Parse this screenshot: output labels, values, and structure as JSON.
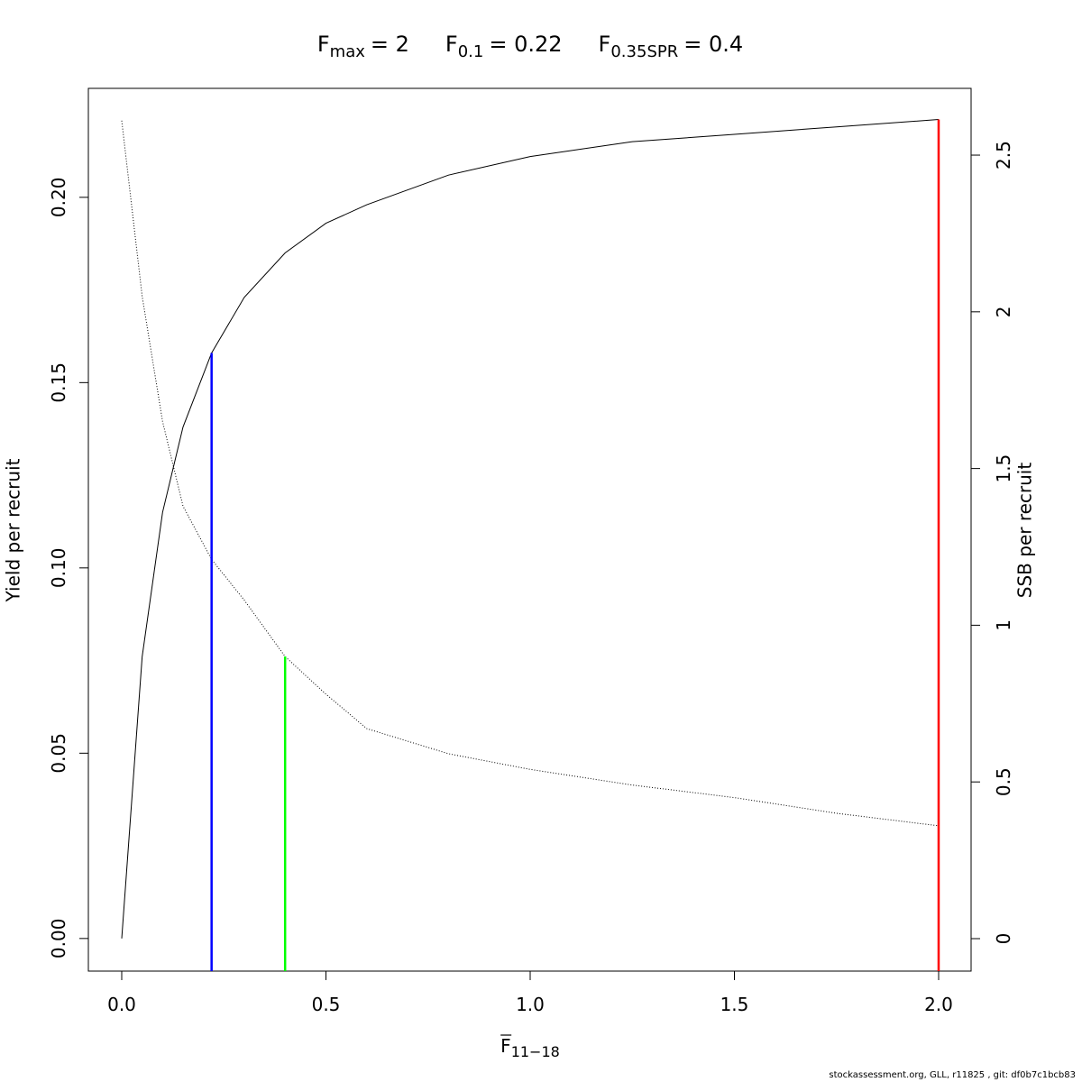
{
  "chart_data": {
    "type": "line",
    "title_parts": [
      {
        "symbol": "F",
        "subscript": "max",
        "value_text": "= 2"
      },
      {
        "symbol": "F",
        "subscript": "0.1",
        "value_text": "= 0.22"
      },
      {
        "symbol": "F",
        "subscript": "0.35SPR",
        "value_text": "= 0.4"
      }
    ],
    "xlabel": {
      "symbol": "F",
      "subscript": "11−18"
    },
    "ylabel": "Yield per recruit",
    "y2label": "SSB per recruit",
    "x": [
      0,
      0.05,
      0.1,
      0.15,
      0.22,
      0.3,
      0.4,
      0.5,
      0.6,
      0.8,
      1.0,
      1.25,
      1.5,
      1.75,
      2.0
    ],
    "series": [
      {
        "color": "#000000",
        "style": "solid",
        "axis": "y",
        "values": [
          0,
          0.076,
          0.115,
          0.138,
          0.158,
          0.173,
          0.185,
          0.193,
          0.198,
          0.206,
          0.211,
          0.215,
          0.217,
          0.219,
          0.221
        ]
      },
      {
        "color": "#000000",
        "style": "dotted",
        "axis": "y2",
        "values": [
          2.61,
          2.05,
          1.65,
          1.38,
          1.21,
          1.08,
          0.9,
          0.78,
          0.67,
          0.59,
          0.54,
          0.49,
          0.45,
          0.4,
          0.36
        ]
      }
    ],
    "reference_lines": [
      {
        "x": 0.22,
        "top": 0.158,
        "axis": "y",
        "color": "#0000ff"
      },
      {
        "x": 0.4,
        "top": 0.9,
        "axis": "y2",
        "color": "#00ff00"
      },
      {
        "x": 2.0,
        "top": 0.221,
        "axis": "y",
        "color": "#ff0000"
      }
    ],
    "xlim": [
      -0.0817,
      2.0795
    ],
    "ylim": [
      -0.0088,
      0.2294
    ],
    "y2lim": [
      -0.1036,
      2.713
    ],
    "xticks": [
      {
        "value": 0,
        "label": "0.0"
      },
      {
        "value": 0.5,
        "label": "0.5"
      },
      {
        "value": 1,
        "label": "1.0"
      },
      {
        "value": 1.5,
        "label": "1.5"
      },
      {
        "value": 2,
        "label": "2.0"
      }
    ],
    "yticks": [
      {
        "value": 0,
        "label": "0.00"
      },
      {
        "value": 0.05,
        "label": "0.05"
      },
      {
        "value": 0.1,
        "label": "0.10"
      },
      {
        "value": 0.15,
        "label": "0.15"
      },
      {
        "value": 0.2,
        "label": "0.20"
      }
    ],
    "y2ticks": [
      0,
      0.5,
      1,
      1.5,
      2,
      2.5
    ],
    "footer": "stockassessment.org, GLL, r11825 , git: df0b7c1bcb83"
  }
}
